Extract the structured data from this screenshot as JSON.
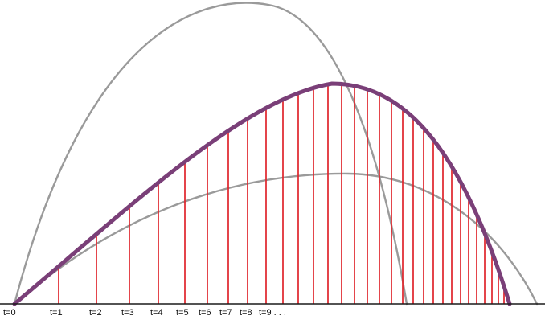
{
  "diagram": {
    "labels": [
      "t=0",
      "t=1",
      "t=2",
      "t=3",
      "t=4",
      "t=5",
      "t=6",
      "t=7",
      "t=8",
      "t=9 . . ."
    ],
    "colors": {
      "background": "#ffffff",
      "axis": "#1a1a1a",
      "gray_curve": "#9a9a9a",
      "main_curve": "#7a3f78",
      "vertical_lines": "#e0242b",
      "label_text": "#111111"
    }
  }
}
